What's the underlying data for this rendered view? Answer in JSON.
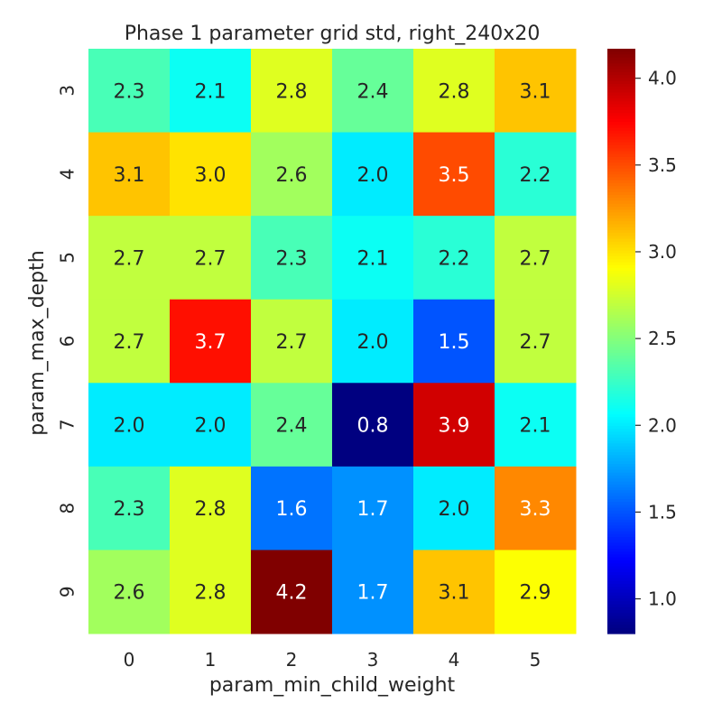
{
  "chart_data": {
    "type": "heatmap",
    "title": "Phase 1 parameter grid std, right_240x20",
    "xlabel": "param_min_child_weight",
    "ylabel": "param_max_depth",
    "x_categories": [
      "0",
      "1",
      "2",
      "3",
      "4",
      "5"
    ],
    "y_categories": [
      "3",
      "4",
      "5",
      "6",
      "7",
      "8",
      "9"
    ],
    "values": [
      [
        2.3,
        2.1,
        2.8,
        2.4,
        2.8,
        3.1
      ],
      [
        3.1,
        3.0,
        2.6,
        2.0,
        3.5,
        2.2
      ],
      [
        2.7,
        2.7,
        2.3,
        2.1,
        2.2,
        2.7
      ],
      [
        2.7,
        3.7,
        2.7,
        2.0,
        1.5,
        2.7
      ],
      [
        2.0,
        2.0,
        2.4,
        0.8,
        3.9,
        2.1
      ],
      [
        2.3,
        2.8,
        1.6,
        1.7,
        2.0,
        3.3
      ],
      [
        2.6,
        2.8,
        4.2,
        1.7,
        3.1,
        2.9
      ]
    ],
    "value_labels": [
      [
        "2.3",
        "2.1",
        "2.8",
        "2.4",
        "2.8",
        "3.1"
      ],
      [
        "3.1",
        "3.0",
        "2.6",
        "2.0",
        "3.5",
        "2.2"
      ],
      [
        "2.7",
        "2.7",
        "2.3",
        "2.1",
        "2.2",
        "2.7"
      ],
      [
        "2.7",
        "3.7",
        "2.7",
        "2.0",
        "1.5",
        "2.7"
      ],
      [
        "2.0",
        "2.0",
        "2.4",
        "0.8",
        "3.9",
        "2.1"
      ],
      [
        "2.3",
        "2.8",
        "1.6",
        "1.7",
        "2.0",
        "3.3"
      ],
      [
        "2.6",
        "2.8",
        "4.2",
        "1.7",
        "3.1",
        "2.9"
      ]
    ],
    "colormap": "jet",
    "color_range": [
      0.8,
      4.17
    ],
    "colorbar_ticks": [
      1.0,
      1.5,
      2.0,
      2.5,
      3.0,
      3.5,
      4.0
    ],
    "colorbar_tick_labels": [
      "1.0",
      "1.5",
      "2.0",
      "2.5",
      "3.0",
      "3.5",
      "4.0"
    ],
    "annotation_colors": {
      "dark": "#262626",
      "light": "#ffffff"
    },
    "grid": false
  }
}
